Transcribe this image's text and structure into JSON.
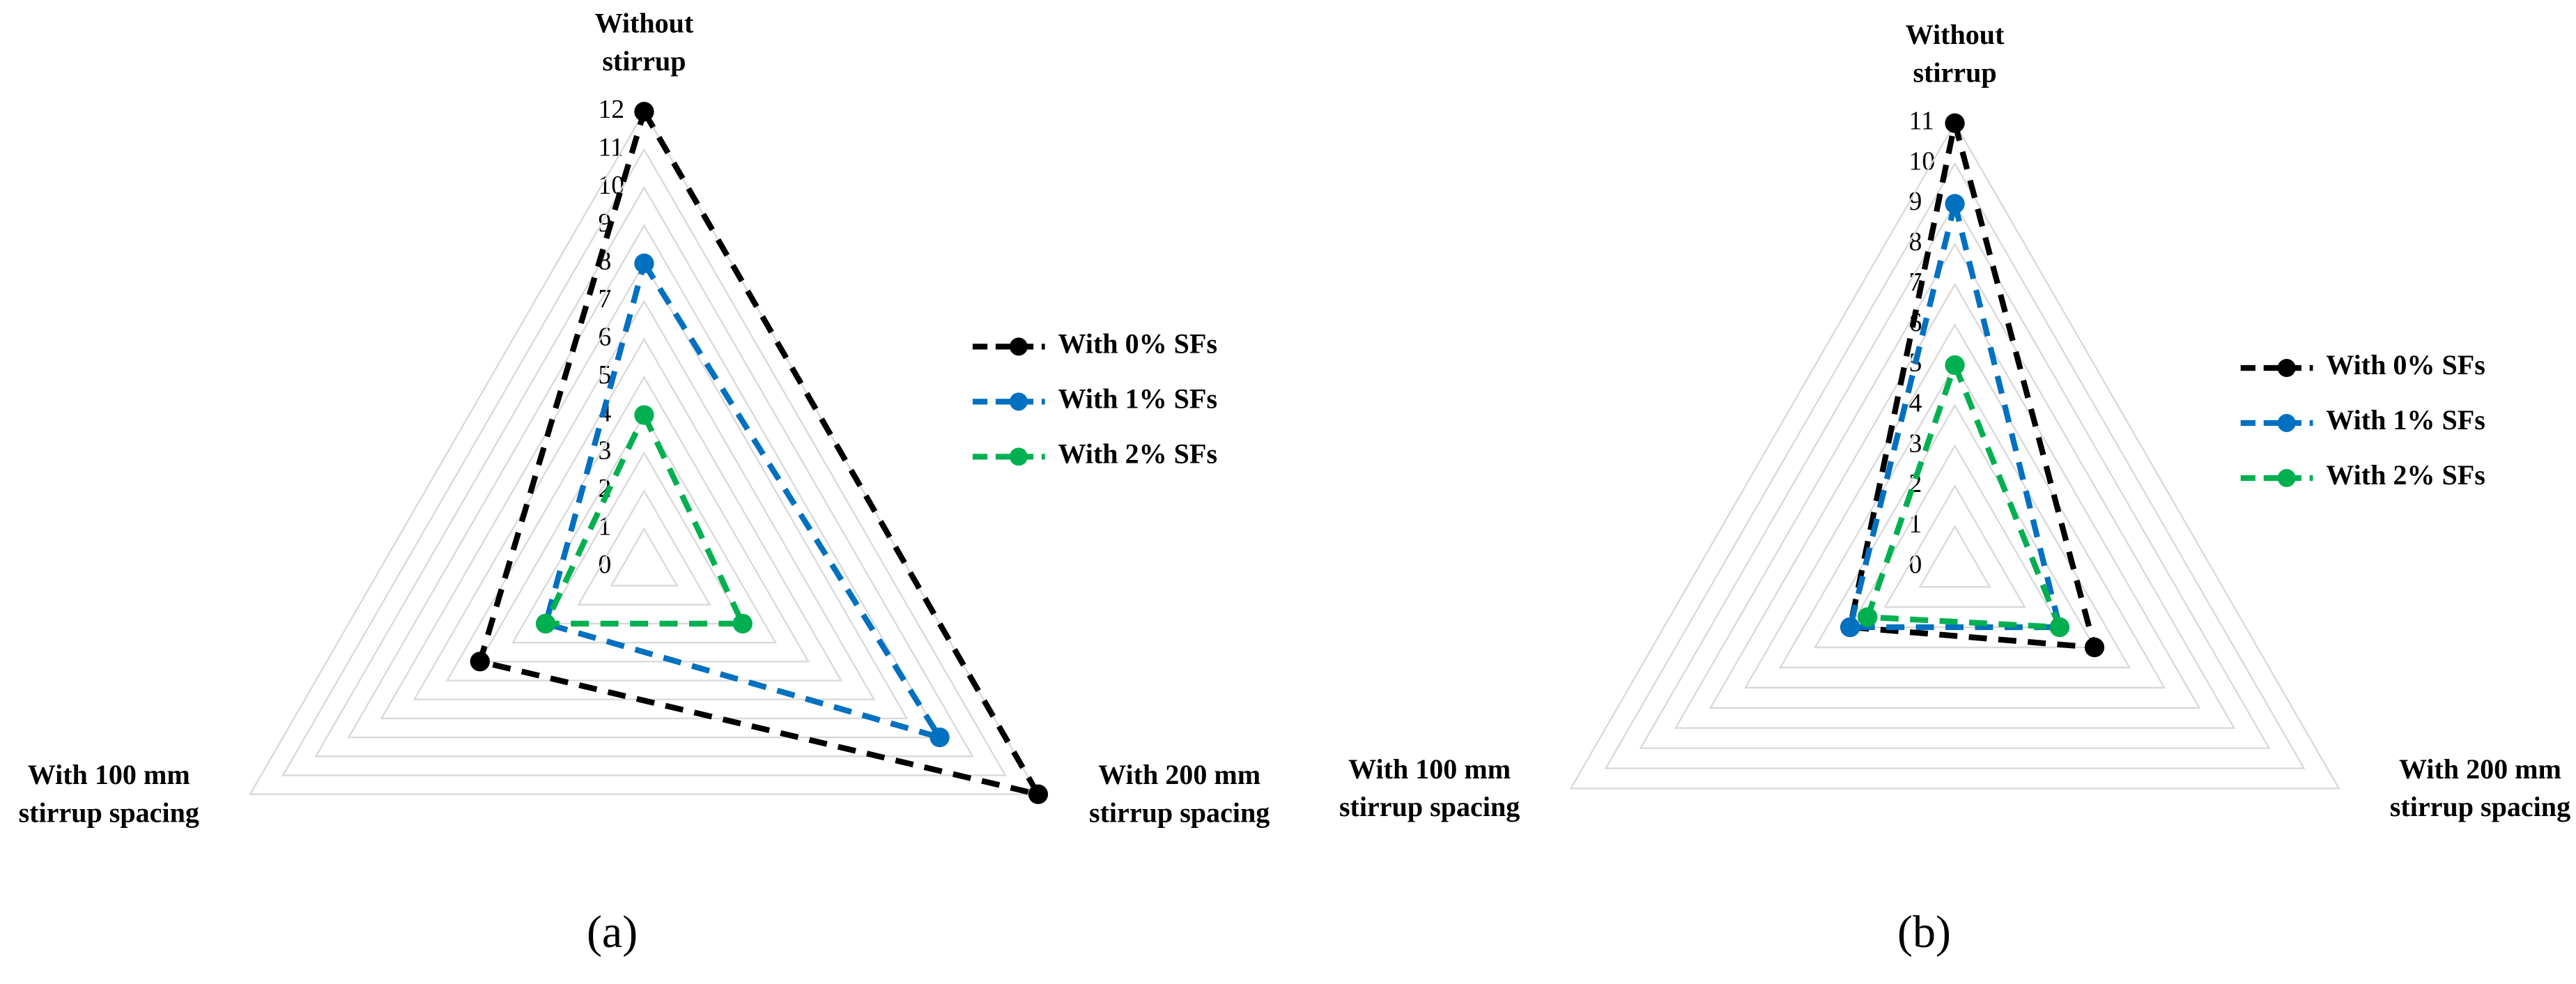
{
  "chart_data": [
    {
      "type": "radar",
      "label": "(a)",
      "categories": [
        "Without stirrup",
        "With 200 mm stirrup spacing",
        "With 100 mm stirrup spacing"
      ],
      "ylim": [
        0,
        12
      ],
      "yticks": [
        0,
        1,
        2,
        3,
        4,
        5,
        6,
        7,
        8,
        9,
        10,
        11,
        12
      ],
      "grid": true,
      "legend": "right",
      "series": [
        {
          "name": "With 0% SFs",
          "color": "#000000",
          "values": [
            12,
            12,
            5
          ]
        },
        {
          "name": "With 1% SFs",
          "color": "#0070c0",
          "values": [
            8,
            9,
            3
          ]
        },
        {
          "name": "With 2% SFs",
          "color": "#00b050",
          "values": [
            4,
            3,
            3
          ]
        }
      ]
    },
    {
      "type": "radar",
      "label": "(b)",
      "categories": [
        "Without stirrup",
        "With 200 mm stirrup spacing",
        "With 100 mm stirrup spacing"
      ],
      "ylim": [
        0,
        11
      ],
      "yticks": [
        0,
        1,
        2,
        3,
        4,
        5,
        6,
        7,
        8,
        9,
        10,
        11
      ],
      "grid": true,
      "legend": "right",
      "series": [
        {
          "name": "With 0% SFs",
          "color": "#000000",
          "values": [
            11,
            4,
            3
          ]
        },
        {
          "name": "With 1% SFs",
          "color": "#0070c0",
          "values": [
            9,
            3,
            3
          ]
        },
        {
          "name": "With 2% SFs",
          "color": "#00b050",
          "values": [
            5,
            3,
            2.5
          ]
        }
      ]
    }
  ]
}
